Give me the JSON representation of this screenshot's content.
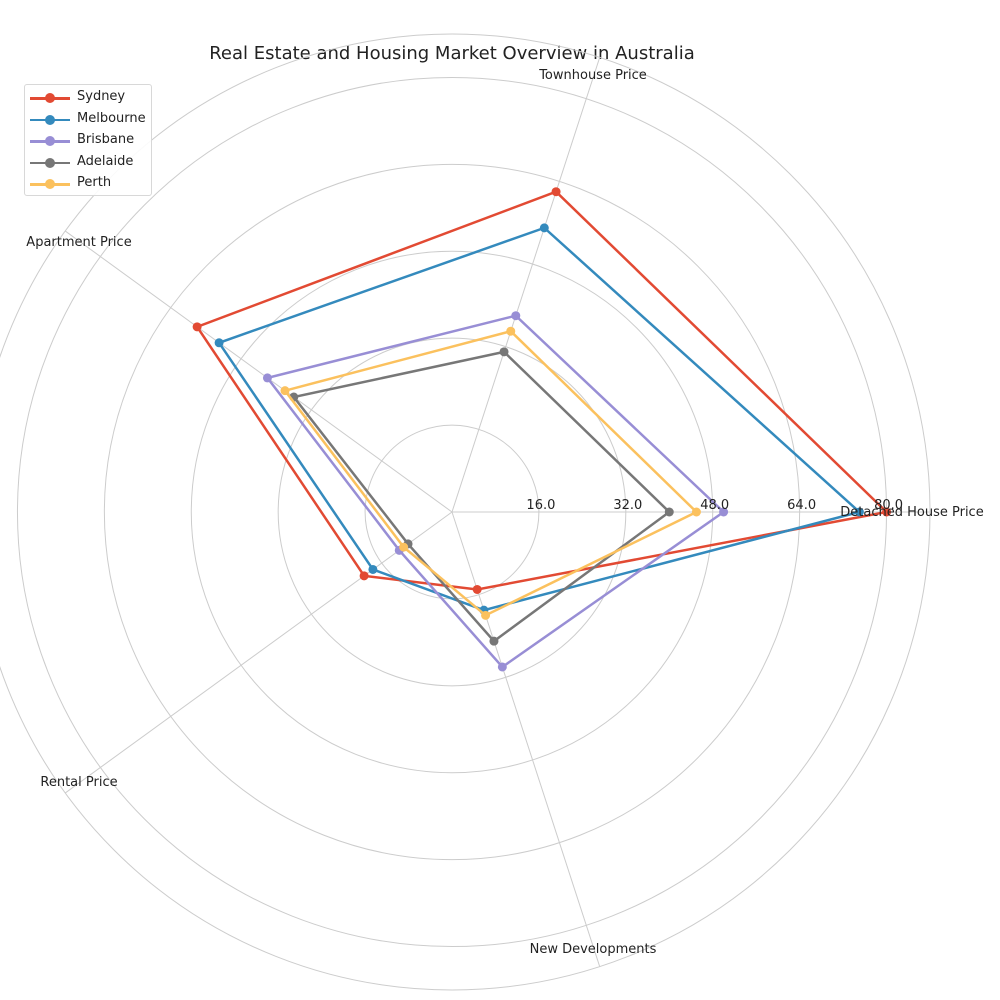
{
  "chart_data": {
    "type": "radar",
    "title": "Real Estate and Housing Market Overview in Australia",
    "categories": [
      "Detached House Price",
      "Townhouse Price",
      "Apartment Price",
      "Rental Price",
      "New Developments"
    ],
    "radial_ticks": [
      "16.0",
      "32.0",
      "48.0",
      "64.0",
      "80.0"
    ],
    "radial_tick_values": [
      16,
      32,
      48,
      64,
      80
    ],
    "rlim": [
      0,
      88
    ],
    "grid": true,
    "legend_position": "top-left",
    "series": [
      {
        "name": "Sydney",
        "color": "#E24A33",
        "values": [
          80,
          62,
          58,
          20,
          15
        ]
      },
      {
        "name": "Melbourne",
        "color": "#348ABD",
        "values": [
          75,
          55,
          53,
          18,
          19
        ]
      },
      {
        "name": "Brisbane",
        "color": "#988ED5",
        "values": [
          50,
          38,
          42,
          12,
          30
        ]
      },
      {
        "name": "Adelaide",
        "color": "#777777",
        "values": [
          40,
          31,
          36,
          10,
          25
        ]
      },
      {
        "name": "Perth",
        "color": "#FBC15E",
        "values": [
          45,
          35,
          38,
          11,
          20
        ]
      }
    ]
  }
}
